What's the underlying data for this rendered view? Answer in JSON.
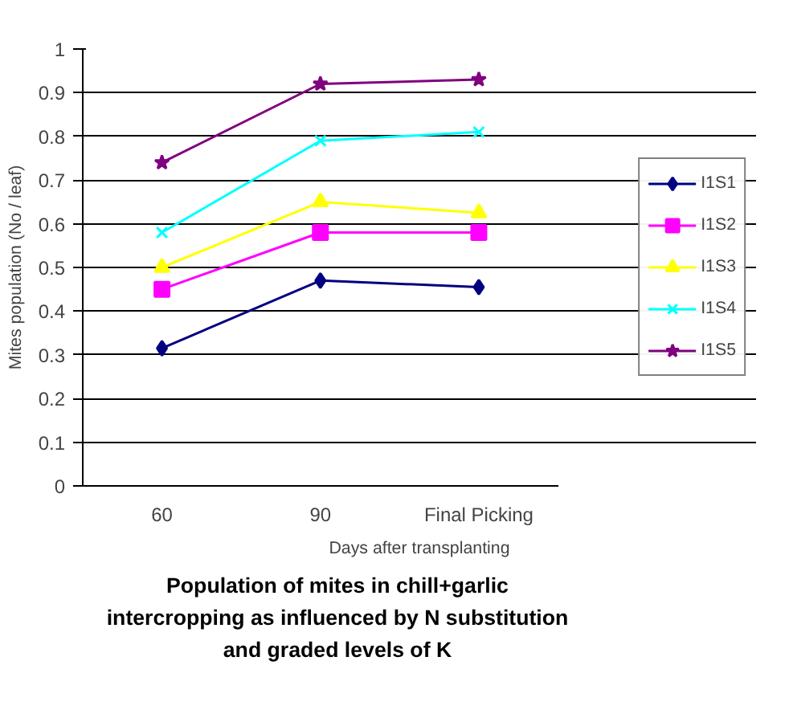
{
  "chart_data": {
    "type": "line",
    "title": "Population of mites in chill+garlic intercropping as influenced by N substitution and graded levels of K",
    "xlabel": "Days after transplanting",
    "ylabel": "Mites population (No / leaf)",
    "categories": [
      "60",
      "90",
      "Final Picking"
    ],
    "ylim": [
      0,
      1
    ],
    "yticks": [
      0,
      0.1,
      0.2,
      0.3,
      0.4,
      0.5,
      0.6,
      0.7,
      0.8,
      0.9,
      1
    ],
    "grid": "y",
    "legend": "right",
    "series": [
      {
        "name": "I1S1",
        "color": "#000080",
        "marker": "diamond",
        "values": [
          0.315,
          0.47,
          0.455
        ]
      },
      {
        "name": "I1S2",
        "color": "#ff00ff",
        "marker": "square",
        "values": [
          0.45,
          0.58,
          0.58
        ]
      },
      {
        "name": "I1S3",
        "color": "#ffff00",
        "marker": "triangle",
        "values": [
          0.5,
          0.65,
          0.625
        ]
      },
      {
        "name": "I1S4",
        "color": "#00ffff",
        "marker": "cross",
        "values": [
          0.58,
          0.79,
          0.81
        ]
      },
      {
        "name": "I1S5",
        "color": "#800080",
        "marker": "star",
        "values": [
          0.74,
          0.92,
          0.93
        ]
      }
    ]
  }
}
